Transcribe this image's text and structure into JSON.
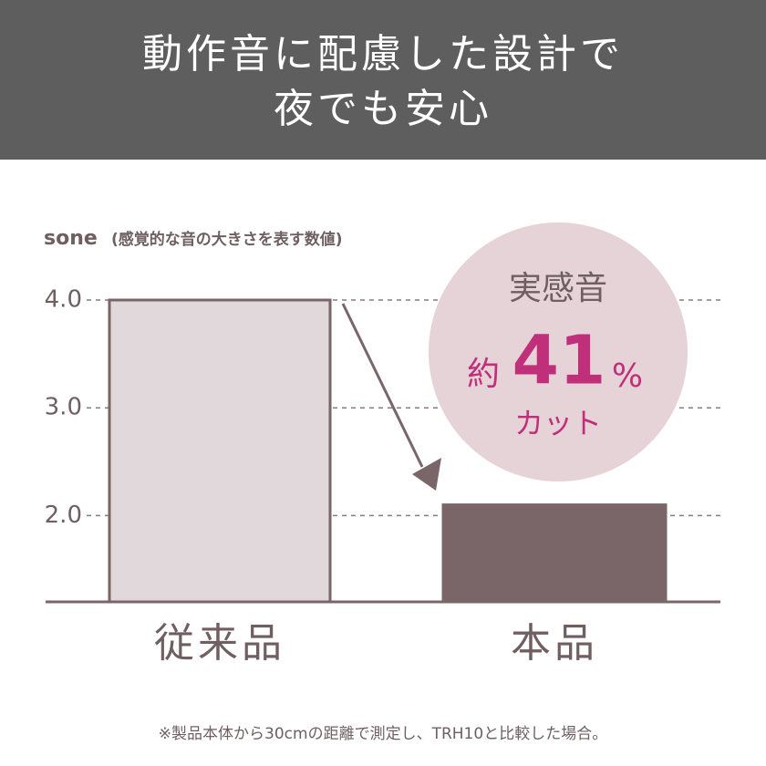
{
  "chart_data": {
    "type": "bar",
    "title": [
      "動作音に配慮した設計で",
      "夜でも安心"
    ],
    "y_label": "sone",
    "y_label_note": "(感覚的な音の大きさを表す数値)",
    "categories": [
      "従来品",
      "本品"
    ],
    "values": [
      4.0,
      2.1
    ],
    "colors": [
      "#e0d8da",
      "#7a6668"
    ],
    "ylim": [
      1.2,
      4.0
    ],
    "yticks": [
      {
        "value": 2,
        "label": "2.0"
      },
      {
        "value": 3,
        "label": "3.0"
      },
      {
        "value": 4,
        "label": "4.0"
      }
    ],
    "grid": true,
    "callout": {
      "heading": "実感音",
      "prefix": "約",
      "value": 41,
      "unit": "%",
      "suffix": "カット"
    },
    "footnote": "※製品本体から30cmの距離で測定し、TRH10と比較した場合。"
  }
}
